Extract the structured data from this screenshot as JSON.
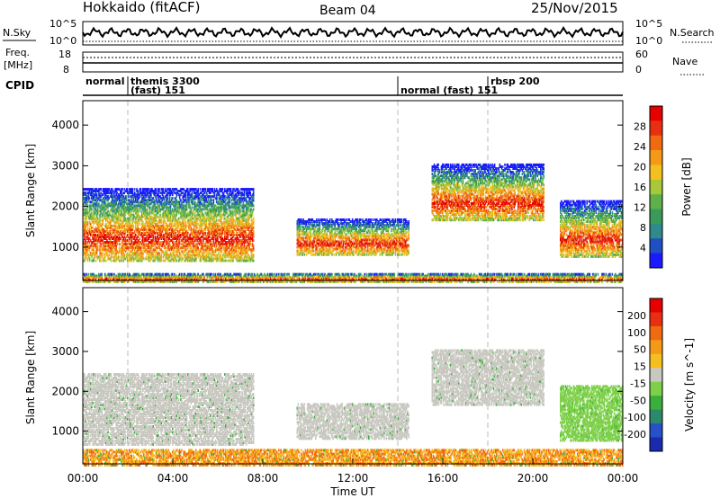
{
  "header": {
    "title": "Hokkaido (fitACF)",
    "beam": "Beam 04",
    "date": "25/Nov/2015"
  },
  "sky_panel": {
    "left_label": "N.Sky",
    "right_label": "N.Search",
    "left_ticks": [
      "10^5",
      "10^0"
    ],
    "right_ticks": [
      "10^5",
      "10^0"
    ]
  },
  "freq_panel": {
    "left_label_1": "Freq.",
    "left_label_2": "[MHz]",
    "right_label": "Nave",
    "left_ticks": [
      "18",
      "8"
    ],
    "right_ticks": [
      "60",
      "0"
    ]
  },
  "cpid": {
    "label": "CPID",
    "segments": [
      {
        "start_h": 0.0,
        "end_h": 2.0,
        "line1": "normal",
        "line2": ""
      },
      {
        "start_h": 2.0,
        "end_h": 14.0,
        "line1": "themis 3300",
        "line2": "(fast) 151"
      },
      {
        "start_h": 14.0,
        "end_h": 18.0,
        "line1": "",
        "line2": "normal (fast) 151"
      },
      {
        "start_h": 18.0,
        "end_h": 24.0,
        "line1": "rbsp 200",
        "line2": ""
      }
    ]
  },
  "power_panel": {
    "ylabel": "Slant Range [km]",
    "yticks": [
      1000,
      2000,
      3000,
      4000
    ],
    "colorbar_label": "Power [dB]",
    "colorbar_ticks": [
      "4",
      "8",
      "12",
      "16",
      "20",
      "24",
      "28"
    ],
    "colorbar_colors": [
      "#1a1aff",
      "#1f4fc0",
      "#2f8a8a",
      "#3a9a5a",
      "#5fb04a",
      "#a8c83a",
      "#f4c020",
      "#f49a18",
      "#f06a10",
      "#e83010",
      "#e60000"
    ]
  },
  "velocity_panel": {
    "ylabel": "Slant Range [km]",
    "yticks": [
      1000,
      2000,
      3000,
      4000
    ],
    "colorbar_label": "Velocity [m s^-1]",
    "colorbar_ticks": [
      "200",
      "100",
      "50",
      "15",
      "-15",
      "-50",
      "-100",
      "-200"
    ],
    "colorbar_colors": [
      "#1a2ab0",
      "#2850c8",
      "#2a8a6a",
      "#3ab03a",
      "#7ed04a",
      "#c8c8c0",
      "#f4c020",
      "#f49a18",
      "#f06a10",
      "#e83010",
      "#e60000"
    ]
  },
  "x_axis": {
    "ticks": [
      "00:00",
      "04:00",
      "08:00",
      "12:00",
      "16:00",
      "20:00",
      "00:00"
    ],
    "label": "Time UT"
  },
  "chart_data": {
    "type": "heatmap",
    "x_range_hours": [
      0,
      24
    ],
    "y_range_km": [
      180,
      4600
    ],
    "grid": false,
    "panels": [
      {
        "name": "Power",
        "quantity": "backscatter power [dB]",
        "clim": [
          0,
          30
        ],
        "scatter_regions": [
          {
            "t_start": 0.0,
            "t_end": 7.6,
            "range_km": [
              700,
              2500
            ],
            "peak_db": 28
          },
          {
            "t_start": 9.5,
            "t_end": 14.5,
            "range_km": [
              850,
              1750
            ],
            "peak_db": 22
          },
          {
            "t_start": 15.5,
            "t_end": 20.5,
            "range_km": [
              1700,
              3100
            ],
            "peak_db": 28
          },
          {
            "t_start": 21.2,
            "t_end": 24.0,
            "range_km": [
              800,
              2200
            ],
            "peak_db": 28
          },
          {
            "t_start": 0.0,
            "t_end": 24.0,
            "range_km": [
              180,
              400
            ],
            "peak_db": 24
          }
        ]
      },
      {
        "name": "Velocity",
        "quantity": "line-of-sight velocity [m/s]",
        "clim": [
          -250,
          250
        ],
        "scatter_regions": [
          {
            "t_start": 0.0,
            "t_end": 7.6,
            "range_km": [
              700,
              2500
            ],
            "typical_mps": 0
          },
          {
            "t_start": 9.5,
            "t_end": 14.5,
            "range_km": [
              850,
              1750
            ],
            "typical_mps": 0
          },
          {
            "t_start": 15.5,
            "t_end": 20.5,
            "range_km": [
              1700,
              3100
            ],
            "typical_mps": 0
          },
          {
            "t_start": 21.2,
            "t_end": 24.0,
            "range_km": [
              800,
              2200
            ],
            "typical_mps": 30
          },
          {
            "t_start": 0.0,
            "t_end": 24.0,
            "range_km": [
              180,
              600
            ],
            "typical_mps": -60
          }
        ]
      }
    ]
  }
}
